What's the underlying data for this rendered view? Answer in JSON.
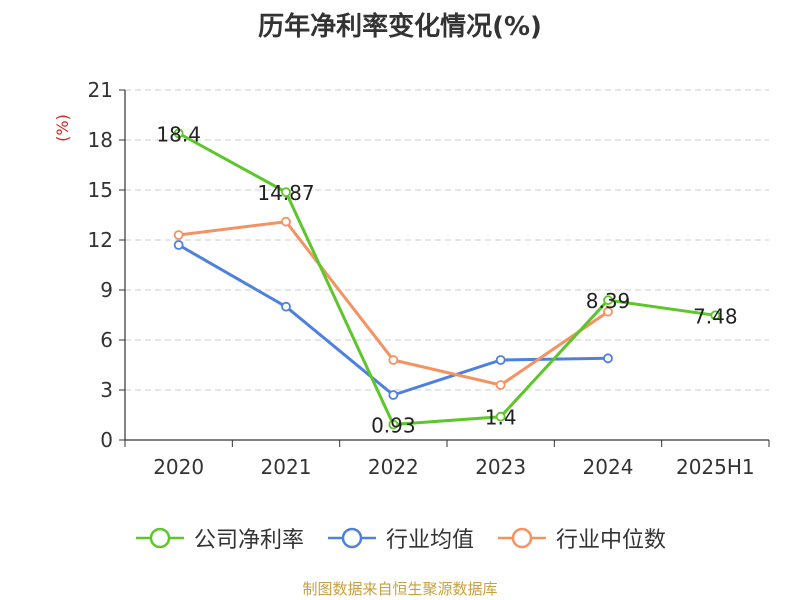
{
  "title": "历年净利率变化情况(%)",
  "source": "制图数据来自恒生聚源数据库",
  "chart_data": {
    "type": "line",
    "title": "历年净利率变化情况(%)",
    "ylabel": "(%)",
    "xlabel": "",
    "categories": [
      "2020",
      "2021",
      "2022",
      "2023",
      "2024",
      "2025H1"
    ],
    "ylim": [
      0,
      21
    ],
    "yticks": [
      0,
      3,
      6,
      9,
      12,
      15,
      18,
      21
    ],
    "grid": true,
    "legend_position": "bottom",
    "series": [
      {
        "name": "公司净利率",
        "color": "#5cc62b",
        "values": [
          18.4,
          14.87,
          0.93,
          1.4,
          8.39,
          7.48
        ],
        "labels": [
          "18.4",
          "14.87",
          "0.93",
          "1.4",
          "8.39",
          "7.48"
        ]
      },
      {
        "name": "行业均值",
        "color": "#4e80e0",
        "values": [
          11.7,
          8.0,
          2.7,
          4.8,
          4.9,
          null
        ]
      },
      {
        "name": "行业中位数",
        "color": "#f59262",
        "values": [
          12.3,
          13.1,
          4.8,
          3.3,
          7.7,
          null
        ]
      }
    ]
  }
}
